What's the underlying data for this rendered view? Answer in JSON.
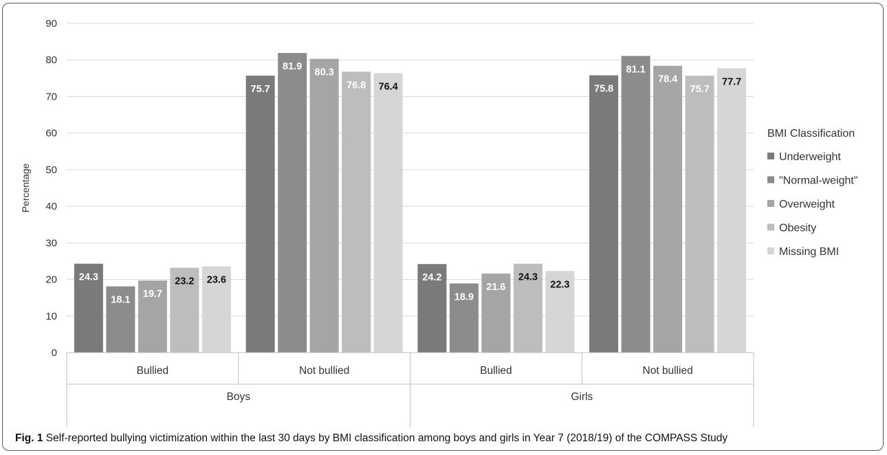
{
  "caption": {
    "label": "Fig. 1",
    "text": "Self-reported bullying victimization within the last 30 days by BMI classification among boys and girls in Year 7 (2018/19) of the COMPASS Study"
  },
  "chart_data": {
    "type": "bar",
    "title": "",
    "ylabel": "Percentage",
    "xlabel": "",
    "ylim": [
      0,
      90
    ],
    "yticks": [
      0,
      10,
      20,
      30,
      40,
      50,
      60,
      70,
      80,
      90
    ],
    "grid": true,
    "legend": {
      "title": "BMI Classification",
      "placement": "right"
    },
    "groups": [
      {
        "label": "Boys",
        "categories": [
          "Bullied",
          "Not bullied"
        ]
      },
      {
        "label": "Girls",
        "categories": [
          "Bullied",
          "Not bullied"
        ]
      }
    ],
    "categories": [
      "Boys / Bullied",
      "Boys / Not bullied",
      "Girls / Bullied",
      "Girls / Not bullied"
    ],
    "series": [
      {
        "name": "Underweight",
        "color": "#7a7a7a",
        "label_color": "#ffffff",
        "values": [
          24.3,
          75.7,
          24.2,
          75.8
        ]
      },
      {
        "name": "\"Normal-weight\"",
        "color": "#8c8c8c",
        "label_color": "#ffffff",
        "values": [
          18.1,
          81.9,
          18.9,
          81.1
        ]
      },
      {
        "name": "Overweight",
        "color": "#a5a5a5",
        "label_color": "#ffffff",
        "values": [
          19.7,
          80.3,
          21.6,
          78.4
        ]
      },
      {
        "name": "Obesity",
        "color": "#bdbdbd",
        "label_color": "#ffffff",
        "values": [
          23.2,
          76.8,
          24.3,
          75.7
        ]
      },
      {
        "name": "Missing BMI",
        "color": "#d6d6d6",
        "label_color": "#111111",
        "values": [
          23.6,
          76.4,
          22.3,
          77.7
        ]
      }
    ],
    "label_color_overrides": [
      {
        "series": 3,
        "category": 0,
        "color": "#111111"
      },
      {
        "series": 3,
        "category": 2,
        "color": "#111111"
      },
      {
        "series": 3,
        "category": 3,
        "color": "#ffffff"
      }
    ]
  }
}
